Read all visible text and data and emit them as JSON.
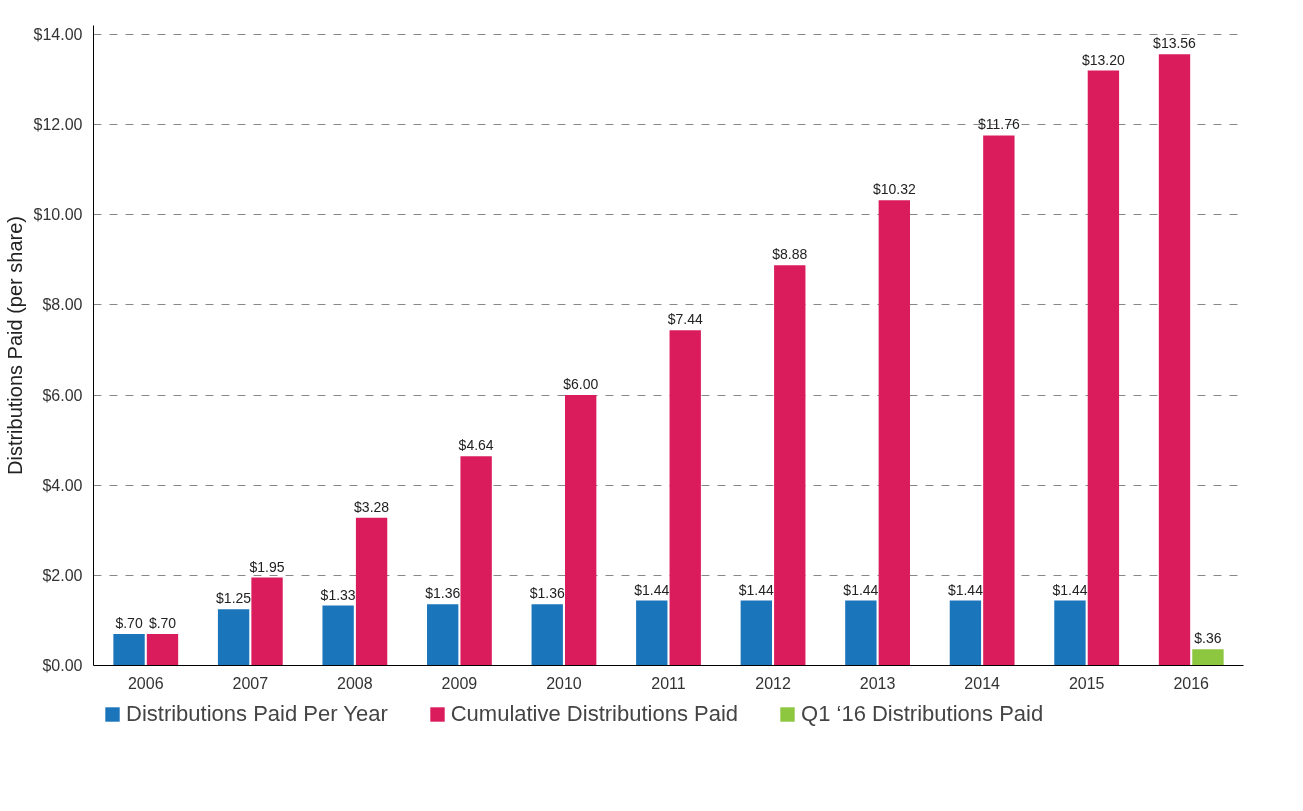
{
  "chart_data": {
    "type": "bar",
    "ylabel": "Distributions Paid (per share)",
    "categories": [
      "2006",
      "2007",
      "2008",
      "2009",
      "2010",
      "2011",
      "2012",
      "2013",
      "2014",
      "2015",
      "2016"
    ],
    "series": [
      {
        "name": "Distributions Paid Per Year",
        "color": "#1b75bb",
        "values": [
          0.7,
          1.25,
          1.33,
          1.36,
          1.36,
          1.44,
          1.44,
          1.44,
          1.44,
          1.44,
          null
        ],
        "value_labels": [
          "$.70",
          "$1.25",
          "$1.33",
          "$1.36",
          "$1.36",
          "$1.44",
          "$1.44",
          "$1.44",
          "$1.44",
          "$1.44",
          null
        ]
      },
      {
        "name": "Cumulative Distributions Paid",
        "color": "#da1c5c",
        "values": [
          0.7,
          1.95,
          3.28,
          4.64,
          6.0,
          7.44,
          8.88,
          10.32,
          11.76,
          13.2,
          13.56
        ],
        "value_labels": [
          "$.70",
          "$1.95",
          "$3.28",
          "$4.64",
          "$6.00",
          "$7.44",
          "$8.88",
          "$10.32",
          "$11.76",
          "$13.20",
          "$13.56"
        ]
      },
      {
        "name": "Q1 ‘16 Distributions Paid",
        "color": "#8dc63f",
        "values": [
          null,
          null,
          null,
          null,
          null,
          null,
          null,
          null,
          null,
          null,
          0.36
        ],
        "value_labels": [
          null,
          null,
          null,
          null,
          null,
          null,
          null,
          null,
          null,
          null,
          "$.36"
        ]
      }
    ],
    "ylim": [
      0,
      14.2
    ],
    "yticks": [
      {
        "value": 0,
        "label": "$0.00"
      },
      {
        "value": 2,
        "label": "$2.00"
      },
      {
        "value": 4,
        "label": "$4.00"
      },
      {
        "value": 6,
        "label": "$6.00"
      },
      {
        "value": 8,
        "label": "$8.00"
      },
      {
        "value": 10,
        "label": "$10.00"
      },
      {
        "value": 12,
        "label": "$12.00"
      },
      {
        "value": 14,
        "label": "$14.00"
      }
    ],
    "grid": "y",
    "legend": "bottom"
  }
}
